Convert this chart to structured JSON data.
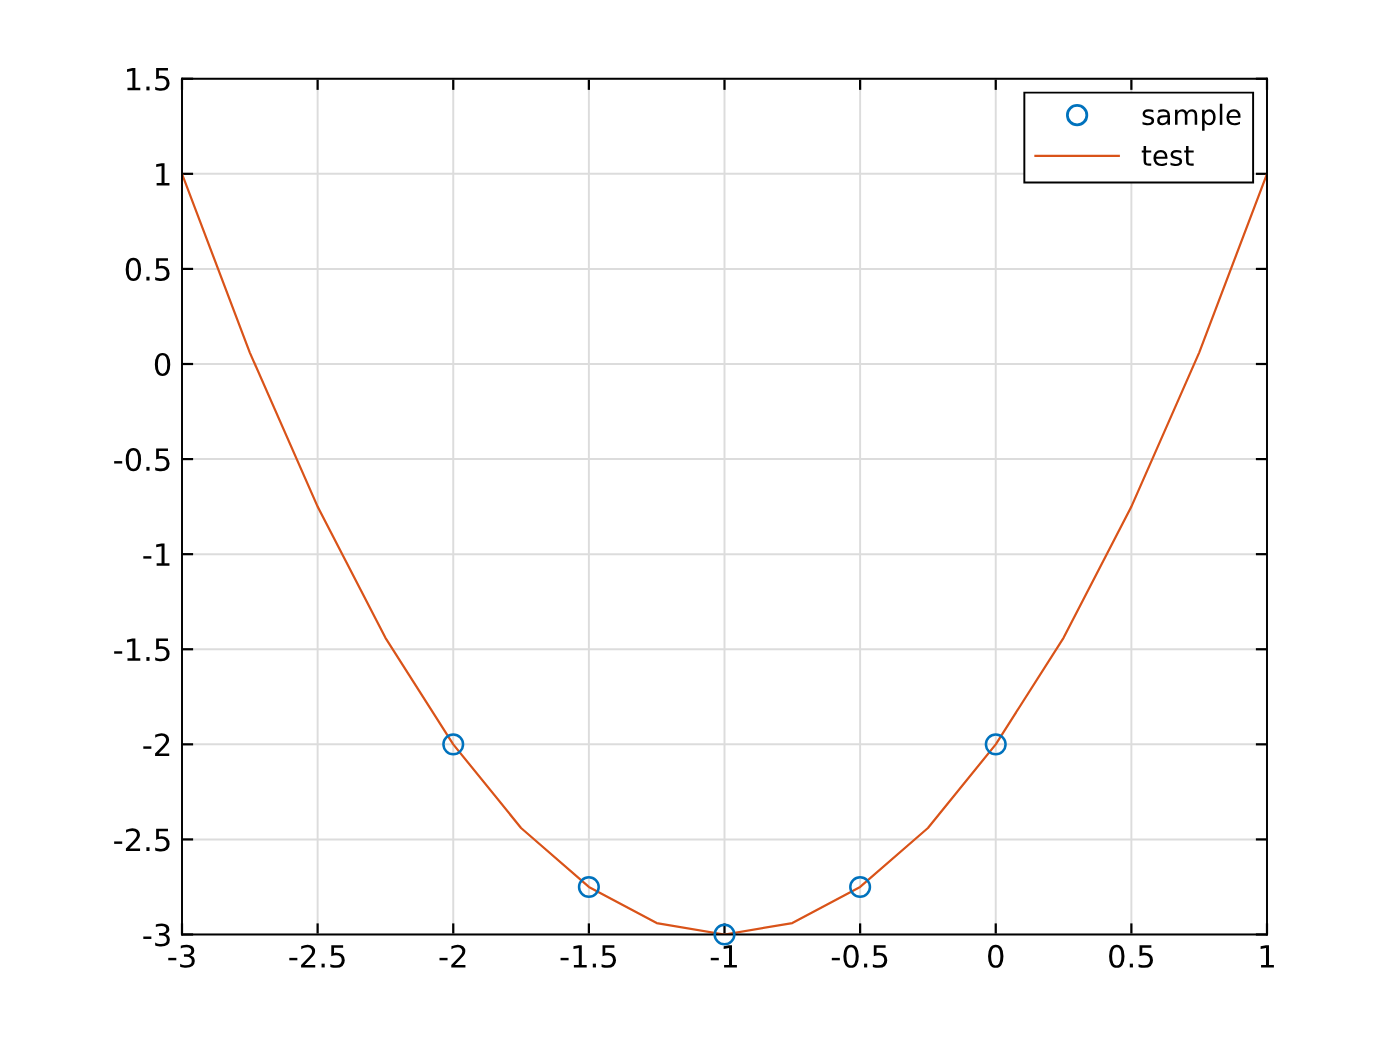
{
  "chart_data": {
    "type": "line",
    "series": [
      {
        "name": "sample",
        "type": "scatter",
        "marker": "circle",
        "color": "#0072bd",
        "x": [
          -2,
          -1.5,
          -1,
          -0.5,
          0
        ],
        "values": [
          -2,
          -2.75,
          -3,
          -2.75,
          -2
        ]
      },
      {
        "name": "test",
        "color": "#d95319",
        "line_style": "solid",
        "x": [
          -3,
          -2.75,
          -2.5,
          -2.25,
          -2,
          -1.75,
          -1.5,
          -1.25,
          -1,
          -0.75,
          -0.5,
          -0.25,
          0,
          0.25,
          0.5,
          0.75,
          1
        ],
        "values": [
          1,
          0.06,
          -0.75,
          -1.44,
          -2,
          -2.44,
          -2.75,
          -2.94,
          -3,
          -2.94,
          -2.75,
          -2.44,
          -2,
          -1.44,
          -0.75,
          0.06,
          1
        ]
      }
    ],
    "xlim": [
      -3,
      1
    ],
    "xticks": [
      -3,
      -2.5,
      -2,
      -1.5,
      -1,
      -0.5,
      0,
      0.5,
      1
    ],
    "ylim": [
      -3,
      1.5
    ],
    "yticks": [
      -3,
      -2.5,
      -2,
      -1.5,
      -1,
      -0.5,
      0,
      0.5,
      1,
      1.5
    ],
    "grid": true,
    "legend": "top right"
  }
}
